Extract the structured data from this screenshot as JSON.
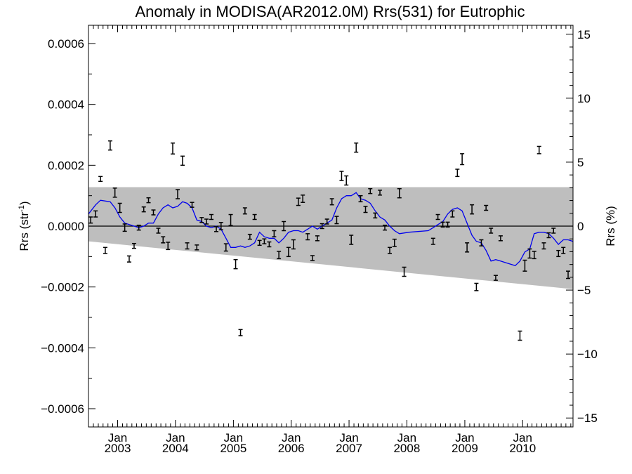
{
  "chart_data": {
    "type": "scatter",
    "title": "Anomaly in MODISA(AR2012.0M) Rrs(531) for Eutrophic",
    "ylabel_left_main": "Rrs (str",
    "ylabel_left_sup": "-1",
    "ylabel_left_close": ")",
    "ylabel_right": "Rrs (%)",
    "x_range": [
      "2002-07-01",
      "2010-11-15"
    ],
    "ylim_left": [
      -0.00066,
      0.00066
    ],
    "ylim_right": [
      -15.7,
      15.7
    ],
    "left_ticks": [
      {
        "value": 0.0006,
        "label": "0.0006"
      },
      {
        "value": 0.0004,
        "label": "0.0004"
      },
      {
        "value": 0.0002,
        "label": "0.0002"
      },
      {
        "value": 0.0,
        "label": "0.0000"
      },
      {
        "value": -0.0002,
        "label": "−0.0002"
      },
      {
        "value": -0.0004,
        "label": "−0.0004"
      },
      {
        "value": -0.0006,
        "label": "−0.0006"
      }
    ],
    "right_ticks": [
      {
        "value": 15,
        "label": "15"
      },
      {
        "value": 10,
        "label": "10"
      },
      {
        "value": 5,
        "label": "5"
      },
      {
        "value": 0,
        "label": "0"
      },
      {
        "value": -5,
        "label": "−5"
      },
      {
        "value": -10,
        "label": "−10"
      },
      {
        "value": -15,
        "label": "−15"
      }
    ],
    "x_ticks": [
      {
        "date": "2003-01-01",
        "month": "Jan",
        "year": "2003"
      },
      {
        "date": "2004-01-01",
        "month": "Jan",
        "year": "2004"
      },
      {
        "date": "2005-01-01",
        "month": "Jan",
        "year": "2005"
      },
      {
        "date": "2006-01-01",
        "month": "Jan",
        "year": "2006"
      },
      {
        "date": "2007-01-01",
        "month": "Jan",
        "year": "2007"
      },
      {
        "date": "2008-01-01",
        "month": "Jan",
        "year": "2008"
      },
      {
        "date": "2009-01-01",
        "month": "Jan",
        "year": "2009"
      },
      {
        "date": "2010-01-01",
        "month": "Jan",
        "year": "2010"
      }
    ],
    "band": {
      "start": "2002-07-01",
      "end": "2010-11-15",
      "upper_start": 0.000128,
      "upper_end": 0.000128,
      "lower_start": -5e-05,
      "lower_end": -0.000207
    },
    "zero_line": 0.0,
    "anomalies": [
      {
        "date": "2002-07-15",
        "value": 2e-05,
        "err": 1e-05
      },
      {
        "date": "2002-08-15",
        "value": 4e-05,
        "err": 1e-05
      },
      {
        "date": "2002-09-15",
        "value": 0.000155,
        "err": 8e-06
      },
      {
        "date": "2002-10-15",
        "value": -8e-05,
        "err": 1e-05
      },
      {
        "date": "2002-11-15",
        "value": 0.000265,
        "err": 1.5e-05
      },
      {
        "date": "2002-12-15",
        "value": 0.00011,
        "err": 1.5e-05
      },
      {
        "date": "2003-01-15",
        "value": 6e-05,
        "err": 1.5e-05
      },
      {
        "date": "2003-02-15",
        "value": -5e-06,
        "err": 1.2e-05
      },
      {
        "date": "2003-03-15",
        "value": -0.000108,
        "err": 1e-05
      },
      {
        "date": "2003-04-15",
        "value": -6.5e-05,
        "err": 8e-06
      },
      {
        "date": "2003-05-15",
        "value": -5e-06,
        "err": 8e-06
      },
      {
        "date": "2003-06-15",
        "value": 5.5e-05,
        "err": 8e-06
      },
      {
        "date": "2003-07-15",
        "value": 8.5e-05,
        "err": 8e-06
      },
      {
        "date": "2003-08-15",
        "value": 4.5e-05,
        "err": 8e-06
      },
      {
        "date": "2003-09-15",
        "value": -1.5e-05,
        "err": 8e-06
      },
      {
        "date": "2003-10-15",
        "value": -4.5e-05,
        "err": 1e-05
      },
      {
        "date": "2003-11-15",
        "value": -6.5e-05,
        "err": 1.2e-05
      },
      {
        "date": "2003-12-15",
        "value": 0.000255,
        "err": 1.8e-05
      },
      {
        "date": "2004-01-15",
        "value": 0.000105,
        "err": 1.5e-05
      },
      {
        "date": "2004-02-15",
        "value": 0.000215,
        "err": 1.5e-05
      },
      {
        "date": "2004-03-15",
        "value": -6.5e-05,
        "err": 1e-05
      },
      {
        "date": "2004-04-15",
        "value": 7e-05,
        "err": 8e-06
      },
      {
        "date": "2004-05-15",
        "value": -7e-05,
        "err": 8e-06
      },
      {
        "date": "2004-06-15",
        "value": 2e-05,
        "err": 8e-06
      },
      {
        "date": "2004-07-15",
        "value": 1.5e-05,
        "err": 8e-06
      },
      {
        "date": "2004-08-15",
        "value": 3e-05,
        "err": 8e-06
      },
      {
        "date": "2004-09-15",
        "value": -1e-05,
        "err": 8e-06
      },
      {
        "date": "2004-10-15",
        "value": 0.0,
        "err": 1.2e-05
      },
      {
        "date": "2004-11-15",
        "value": -7e-05,
        "err": 1.2e-05
      },
      {
        "date": "2004-12-15",
        "value": 2e-05,
        "err": 1.8e-05
      },
      {
        "date": "2005-01-15",
        "value": -0.000125,
        "err": 1.5e-05
      },
      {
        "date": "2005-02-15",
        "value": -0.00035,
        "err": 1e-05
      },
      {
        "date": "2005-03-15",
        "value": 5e-05,
        "err": 1e-05
      },
      {
        "date": "2005-04-15",
        "value": -3.5e-05,
        "err": 8e-06
      },
      {
        "date": "2005-05-15",
        "value": 3e-05,
        "err": 8e-06
      },
      {
        "date": "2005-06-15",
        "value": -5.5e-05,
        "err": 8e-06
      },
      {
        "date": "2005-07-15",
        "value": -5e-05,
        "err": 8e-06
      },
      {
        "date": "2005-08-15",
        "value": -6e-05,
        "err": 8e-06
      },
      {
        "date": "2005-09-15",
        "value": -2.5e-05,
        "err": 1e-05
      },
      {
        "date": "2005-10-15",
        "value": -9.5e-05,
        "err": 1.2e-05
      },
      {
        "date": "2005-11-15",
        "value": 0.0,
        "err": 1.5e-05
      },
      {
        "date": "2005-12-15",
        "value": -8.5e-05,
        "err": 1.5e-05
      },
      {
        "date": "2006-01-15",
        "value": -6e-05,
        "err": 1.5e-05
      },
      {
        "date": "2006-02-15",
        "value": 8e-05,
        "err": 1.2e-05
      },
      {
        "date": "2006-03-15",
        "value": 9e-05,
        "err": 1.2e-05
      },
      {
        "date": "2006-04-15",
        "value": -3.5e-05,
        "err": 1e-05
      },
      {
        "date": "2006-05-15",
        "value": -0.000105,
        "err": 8e-06
      },
      {
        "date": "2006-06-15",
        "value": -4e-05,
        "err": 8e-06
      },
      {
        "date": "2006-07-15",
        "value": 0.0,
        "err": 8e-06
      },
      {
        "date": "2006-08-15",
        "value": 1.5e-05,
        "err": 8e-06
      },
      {
        "date": "2006-09-15",
        "value": 8e-05,
        "err": 1e-05
      },
      {
        "date": "2006-10-15",
        "value": 2e-05,
        "err": 1.2e-05
      },
      {
        "date": "2006-11-15",
        "value": 0.000165,
        "err": 1.5e-05
      },
      {
        "date": "2006-12-15",
        "value": 0.00015,
        "err": 1.5e-05
      },
      {
        "date": "2007-01-15",
        "value": -4.5e-05,
        "err": 1.5e-05
      },
      {
        "date": "2007-02-15",
        "value": 0.000258,
        "err": 1.5e-05
      },
      {
        "date": "2007-03-15",
        "value": 9e-05,
        "err": 1e-05
      },
      {
        "date": "2007-04-15",
        "value": 5.5e-05,
        "err": 1e-05
      },
      {
        "date": "2007-05-15",
        "value": 0.000115,
        "err": 8e-06
      },
      {
        "date": "2007-06-15",
        "value": 3.5e-05,
        "err": 8e-06
      },
      {
        "date": "2007-07-15",
        "value": 0.00011,
        "err": 8e-06
      },
      {
        "date": "2007-08-15",
        "value": -5e-06,
        "err": 8e-06
      },
      {
        "date": "2007-09-15",
        "value": -8e-05,
        "err": 1e-05
      },
      {
        "date": "2007-10-15",
        "value": -5.5e-05,
        "err": 1.2e-05
      },
      {
        "date": "2007-11-15",
        "value": 0.000108,
        "err": 1.5e-05
      },
      {
        "date": "2007-12-15",
        "value": -0.00015,
        "err": 1.5e-05
      },
      {
        "date": "2008-06-15",
        "value": -5e-05,
        "err": 1e-05
      },
      {
        "date": "2008-07-15",
        "value": 3e-05,
        "err": 8e-06
      },
      {
        "date": "2008-08-15",
        "value": 5e-06,
        "err": 8e-06
      },
      {
        "date": "2008-09-15",
        "value": 5e-06,
        "err": 8e-06
      },
      {
        "date": "2008-10-15",
        "value": 4e-05,
        "err": 1e-05
      },
      {
        "date": "2008-11-15",
        "value": 0.000175,
        "err": 1.2e-05
      },
      {
        "date": "2008-12-15",
        "value": 0.00022,
        "err": 1.8e-05
      },
      {
        "date": "2009-01-15",
        "value": -7e-05,
        "err": 1.5e-05
      },
      {
        "date": "2009-02-15",
        "value": 5.5e-05,
        "err": 1.5e-05
      },
      {
        "date": "2009-03-15",
        "value": -0.0002,
        "err": 1.2e-05
      },
      {
        "date": "2009-04-15",
        "value": -5.5e-05,
        "err": 1e-05
      },
      {
        "date": "2009-05-15",
        "value": 6e-05,
        "err": 8e-06
      },
      {
        "date": "2009-06-15",
        "value": -1.5e-05,
        "err": 8e-06
      },
      {
        "date": "2009-07-15",
        "value": -0.00017,
        "err": 8e-06
      },
      {
        "date": "2009-08-15",
        "value": -4e-05,
        "err": 8e-06
      },
      {
        "date": "2009-12-15",
        "value": -0.00036,
        "err": 1.5e-05
      },
      {
        "date": "2010-01-15",
        "value": -0.00013,
        "err": 1.8e-05
      },
      {
        "date": "2010-02-15",
        "value": -9e-05,
        "err": 1.5e-05
      },
      {
        "date": "2010-03-15",
        "value": -9.5e-05,
        "err": 1.2e-05
      },
      {
        "date": "2010-04-15",
        "value": 0.00025,
        "err": 1.2e-05
      },
      {
        "date": "2010-05-15",
        "value": -6.5e-05,
        "err": 1e-05
      },
      {
        "date": "2010-06-15",
        "value": -3e-05,
        "err": 8e-06
      },
      {
        "date": "2010-07-15",
        "value": -1.5e-05,
        "err": 8e-06
      },
      {
        "date": "2010-08-15",
        "value": -9e-05,
        "err": 1e-05
      },
      {
        "date": "2010-09-15",
        "value": -8e-05,
        "err": 1e-05
      },
      {
        "date": "2010-10-15",
        "value": -0.00016,
        "err": 1.2e-05
      }
    ],
    "running_mean": [
      {
        "date": "2002-07-01",
        "value": 4e-05
      },
      {
        "date": "2002-08-15",
        "value": 7e-05
      },
      {
        "date": "2002-09-15",
        "value": 8.5e-05
      },
      {
        "date": "2002-11-15",
        "value": 8e-05
      },
      {
        "date": "2002-12-15",
        "value": 6e-05
      },
      {
        "date": "2003-01-15",
        "value": 3e-05
      },
      {
        "date": "2003-02-15",
        "value": 1e-05
      },
      {
        "date": "2003-03-15",
        "value": 5e-06
      },
      {
        "date": "2003-04-15",
        "value": 0.0
      },
      {
        "date": "2003-05-15",
        "value": -5e-06
      },
      {
        "date": "2003-06-15",
        "value": 0.0
      },
      {
        "date": "2003-07-15",
        "value": 1e-05
      },
      {
        "date": "2003-08-15",
        "value": 1e-05
      },
      {
        "date": "2003-09-15",
        "value": 4e-05
      },
      {
        "date": "2003-10-15",
        "value": 6e-05
      },
      {
        "date": "2003-11-15",
        "value": 7e-05
      },
      {
        "date": "2003-12-15",
        "value": 6e-05
      },
      {
        "date": "2004-01-15",
        "value": 6.5e-05
      },
      {
        "date": "2004-02-15",
        "value": 8e-05
      },
      {
        "date": "2004-03-15",
        "value": 7.5e-05
      },
      {
        "date": "2004-04-15",
        "value": 6e-05
      },
      {
        "date": "2004-05-15",
        "value": 2e-05
      },
      {
        "date": "2004-06-15",
        "value": 1.5e-05
      },
      {
        "date": "2004-07-15",
        "value": 0.0
      },
      {
        "date": "2004-08-15",
        "value": -5e-06
      },
      {
        "date": "2004-09-15",
        "value": 0.0
      },
      {
        "date": "2004-10-15",
        "value": -1e-05
      },
      {
        "date": "2004-11-15",
        "value": -4e-05
      },
      {
        "date": "2004-12-15",
        "value": -7e-05
      },
      {
        "date": "2005-01-15",
        "value": -7e-05
      },
      {
        "date": "2005-02-15",
        "value": -6.5e-05
      },
      {
        "date": "2005-03-15",
        "value": -7e-05
      },
      {
        "date": "2005-04-15",
        "value": -6.5e-05
      },
      {
        "date": "2005-05-15",
        "value": -5.5e-05
      },
      {
        "date": "2005-06-15",
        "value": -2e-05
      },
      {
        "date": "2005-07-15",
        "value": -3.5e-05
      },
      {
        "date": "2005-08-15",
        "value": -4e-05
      },
      {
        "date": "2005-09-15",
        "value": -4e-05
      },
      {
        "date": "2005-10-15",
        "value": -5.5e-05
      },
      {
        "date": "2005-11-15",
        "value": -4e-05
      },
      {
        "date": "2005-12-15",
        "value": -2e-05
      },
      {
        "date": "2006-01-15",
        "value": -1.5e-05
      },
      {
        "date": "2006-02-15",
        "value": -1.5e-05
      },
      {
        "date": "2006-03-15",
        "value": -2e-05
      },
      {
        "date": "2006-04-15",
        "value": -1e-05
      },
      {
        "date": "2006-05-15",
        "value": 0.0
      },
      {
        "date": "2006-06-15",
        "value": -1e-05
      },
      {
        "date": "2006-07-15",
        "value": 0.0
      },
      {
        "date": "2006-08-15",
        "value": 1e-05
      },
      {
        "date": "2006-09-15",
        "value": 2e-05
      },
      {
        "date": "2006-10-15",
        "value": 6e-05
      },
      {
        "date": "2006-11-15",
        "value": 9e-05
      },
      {
        "date": "2006-12-15",
        "value": 0.0001
      },
      {
        "date": "2007-01-15",
        "value": 0.0001
      },
      {
        "date": "2007-02-15",
        "value": 0.00011
      },
      {
        "date": "2007-03-15",
        "value": 9e-05
      },
      {
        "date": "2007-04-15",
        "value": 8.5e-05
      },
      {
        "date": "2007-05-15",
        "value": 7.5e-05
      },
      {
        "date": "2007-06-15",
        "value": 5e-05
      },
      {
        "date": "2007-07-15",
        "value": 3e-05
      },
      {
        "date": "2007-08-15",
        "value": 2e-05
      },
      {
        "date": "2007-09-15",
        "value": 0.0
      },
      {
        "date": "2007-10-15",
        "value": -1.5e-05
      },
      {
        "date": "2007-11-15",
        "value": -2.5e-05
      },
      {
        "date": "2008-01-15",
        "value": -2e-05
      },
      {
        "date": "2008-05-15",
        "value": -1.5e-05
      },
      {
        "date": "2008-06-15",
        "value": -5e-06
      },
      {
        "date": "2008-07-15",
        "value": 5e-06
      },
      {
        "date": "2008-08-15",
        "value": 1.5e-05
      },
      {
        "date": "2008-09-15",
        "value": 4e-05
      },
      {
        "date": "2008-10-15",
        "value": 5.5e-05
      },
      {
        "date": "2008-11-15",
        "value": 6e-05
      },
      {
        "date": "2008-12-15",
        "value": 5e-05
      },
      {
        "date": "2009-01-15",
        "value": 1e-05
      },
      {
        "date": "2009-02-15",
        "value": -3e-05
      },
      {
        "date": "2009-03-15",
        "value": -5e-05
      },
      {
        "date": "2009-04-15",
        "value": -5.5e-05
      },
      {
        "date": "2009-05-15",
        "value": -8e-05
      },
      {
        "date": "2009-06-15",
        "value": -0.000115
      },
      {
        "date": "2009-07-15",
        "value": -0.00011
      },
      {
        "date": "2009-08-15",
        "value": -0.000115
      },
      {
        "date": "2009-09-15",
        "value": -0.00012
      },
      {
        "date": "2009-11-15",
        "value": -0.00013
      },
      {
        "date": "2009-12-15",
        "value": -0.000115
      },
      {
        "date": "2010-01-15",
        "value": -8.5e-05
      },
      {
        "date": "2010-02-15",
        "value": -7.5e-05
      },
      {
        "date": "2010-03-15",
        "value": -2.5e-05
      },
      {
        "date": "2010-04-15",
        "value": -2e-05
      },
      {
        "date": "2010-05-15",
        "value": -2e-05
      },
      {
        "date": "2010-06-15",
        "value": -2.5e-05
      },
      {
        "date": "2010-07-15",
        "value": -4e-05
      },
      {
        "date": "2010-08-15",
        "value": -6e-05
      },
      {
        "date": "2010-09-15",
        "value": -4.5e-05
      },
      {
        "date": "2010-10-15",
        "value": -4.5e-05
      },
      {
        "date": "2010-11-15",
        "value": -5e-05
      }
    ],
    "colors": {
      "band": "#bebebe",
      "running_mean": "#0000ee",
      "markers": "#000000",
      "axes": "#000000"
    }
  }
}
